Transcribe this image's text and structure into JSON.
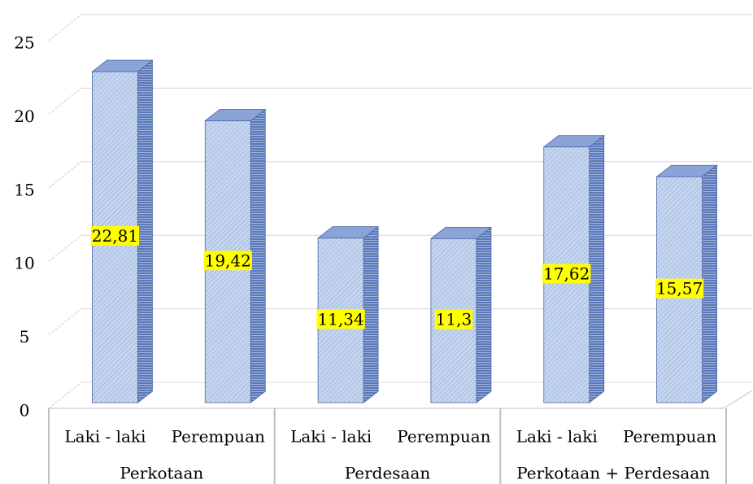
{
  "chart_data": {
    "type": "bar3d",
    "categories": [
      "Laki - laki",
      "Perempuan",
      "Laki - laki",
      "Perempuan",
      "Laki - laki",
      "Perempuan"
    ],
    "groups": [
      "Perkotaan",
      "Perdesaan",
      "Perkotaan + Perdesaan"
    ],
    "values": [
      22.81,
      19.42,
      11.34,
      11.3,
      17.62,
      15.57
    ],
    "value_labels": [
      "22,81",
      "19,42",
      "11,34",
      "11,3",
      "17,62",
      "15,57"
    ],
    "color": "#c6d6ef",
    "ylim": [
      0,
      25
    ],
    "yticks": [
      0,
      5,
      10,
      15,
      20,
      25
    ],
    "grid": true
  }
}
